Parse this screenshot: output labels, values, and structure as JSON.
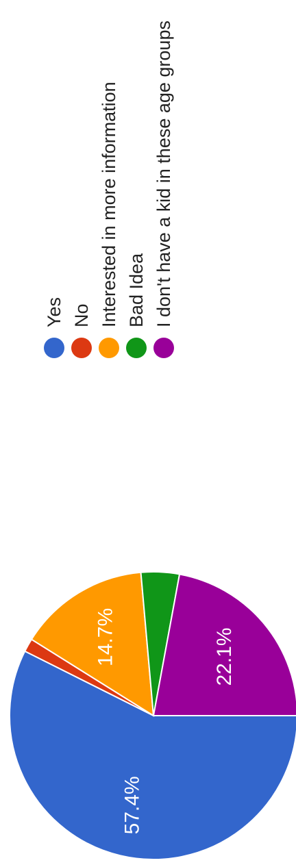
{
  "chart_data": {
    "type": "pie",
    "orientation": "rotated-90-clockwise",
    "series": [
      {
        "name": "Yes",
        "value": 57.4,
        "color": "#3366cc",
        "label": "57.4%"
      },
      {
        "name": "No",
        "value": 1.5,
        "color": "#dc3912",
        "label": ""
      },
      {
        "name": "Interested in more information",
        "value": 14.7,
        "color": "#ff9900",
        "label": "14.7%"
      },
      {
        "name": "Bad Idea",
        "value": 4.3,
        "color": "#109618",
        "label": ""
      },
      {
        "name": "I don't have a kid in these age groups",
        "value": 22.1,
        "color": "#990099",
        "label": "22.1%"
      }
    ],
    "legend_position": "right"
  }
}
